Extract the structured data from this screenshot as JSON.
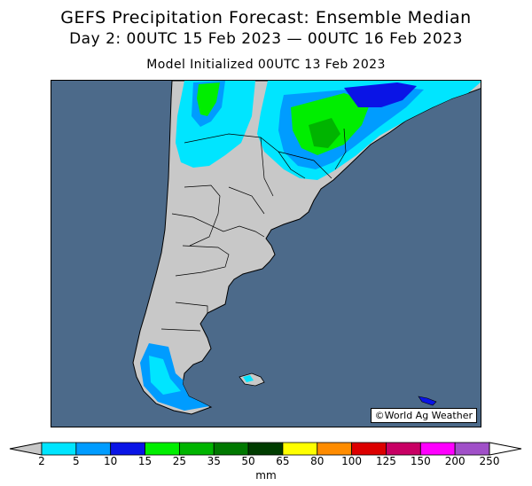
{
  "title": "GEFS Precipitation Forecast: Ensemble Median",
  "valid_period": "Day 2: 00UTC 15 Feb 2023 — 00UTC 16 Feb 2023",
  "model_init": "Model Initialized 00UTC 13 Feb 2023",
  "credit": "©World Ag Weather",
  "colors": {
    "ocean": "#4c6a8a",
    "land": "#c8c8c8"
  },
  "legend": {
    "unit": "mm",
    "bins": [
      {
        "from": 2,
        "to": 5,
        "color": "#00e5ff"
      },
      {
        "from": 5,
        "to": 10,
        "color": "#009cff"
      },
      {
        "from": 10,
        "to": 15,
        "color": "#0a14e6"
      },
      {
        "from": 15,
        "to": 25,
        "color": "#00ee00"
      },
      {
        "from": 25,
        "to": 35,
        "color": "#00b400"
      },
      {
        "from": 35,
        "to": 50,
        "color": "#007800"
      },
      {
        "from": 50,
        "to": 65,
        "color": "#003c00"
      },
      {
        "from": 65,
        "to": 80,
        "color": "#ffff00"
      },
      {
        "from": 80,
        "to": 100,
        "color": "#ff8c00"
      },
      {
        "from": 100,
        "to": 125,
        "color": "#dc0000"
      },
      {
        "from": 125,
        "to": 150,
        "color": "#c80064"
      },
      {
        "from": 150,
        "to": 200,
        "color": "#ff00ff"
      },
      {
        "from": 200,
        "to": 250,
        "color": "#a050c8"
      }
    ],
    "tick_labels": [
      "2",
      "5",
      "10",
      "15",
      "25",
      "35",
      "50",
      "65",
      "80",
      "100",
      "125",
      "150",
      "200",
      "250"
    ]
  }
}
